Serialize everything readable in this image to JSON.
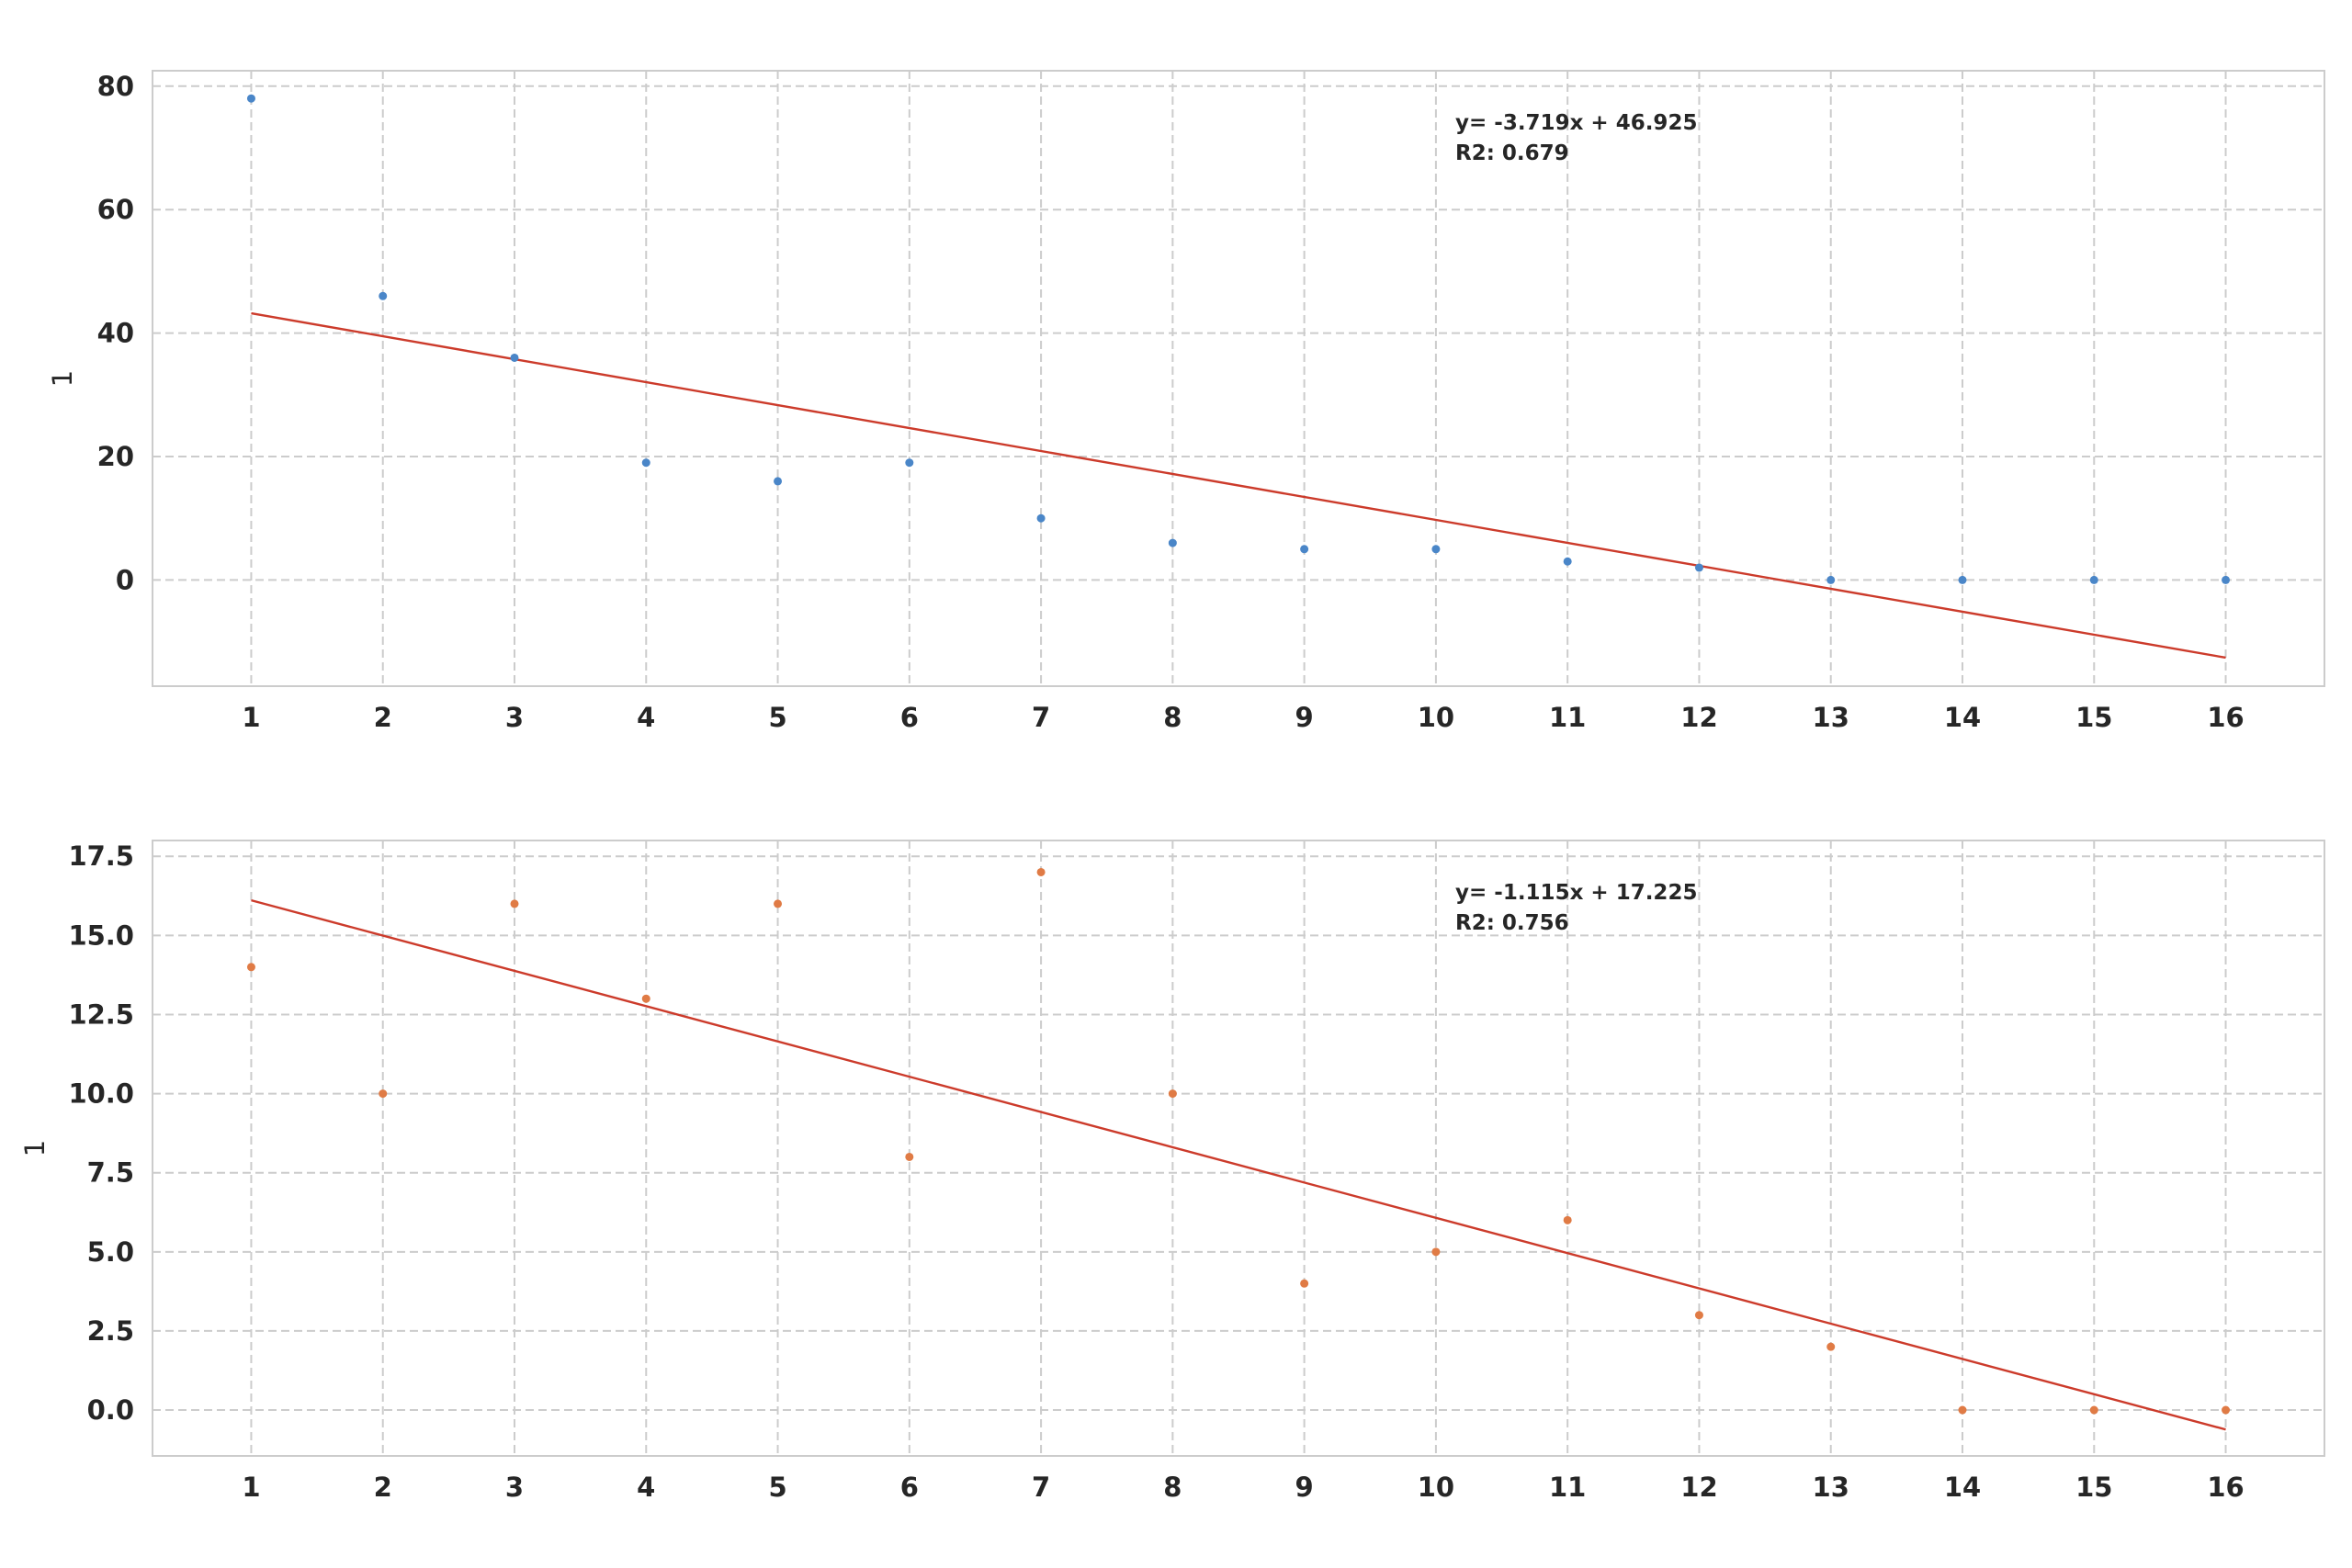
{
  "chart_data": [
    {
      "type": "scatter",
      "title": "",
      "xlabel": "",
      "ylabel": "1",
      "xlim": [
        0.25,
        16.75
      ],
      "ylim": [
        -17.2,
        82.5
      ],
      "xticks": [
        1,
        2,
        3,
        4,
        5,
        6,
        7,
        8,
        9,
        10,
        11,
        12,
        13,
        14,
        15,
        16
      ],
      "yticks": [
        0,
        20,
        40,
        60,
        80
      ],
      "grid": true,
      "series": [
        {
          "color": "#4a86c8",
          "x": [
            1,
            2,
            3,
            4,
            5,
            6,
            7,
            8,
            9,
            10,
            11,
            12,
            13,
            14,
            15,
            16
          ],
          "y": [
            78,
            46,
            36,
            19,
            16,
            19,
            10,
            6,
            5,
            5,
            3,
            2,
            0,
            0,
            0,
            0
          ]
        }
      ],
      "fit_line": {
        "color": "#cc3b2b",
        "slope": -3.719,
        "intercept": 46.925
      },
      "annotation": [
        "y= -3.719x + 46.925",
        "R2: 0.679"
      ]
    },
    {
      "type": "scatter",
      "title": "",
      "xlabel": "",
      "ylabel": "1",
      "xlim": [
        0.25,
        16.75
      ],
      "ylim": [
        -1.45,
        18.0
      ],
      "xticks": [
        1,
        2,
        3,
        4,
        5,
        6,
        7,
        8,
        9,
        10,
        11,
        12,
        13,
        14,
        15,
        16
      ],
      "yticks": [
        0.0,
        2.5,
        5.0,
        7.5,
        10.0,
        12.5,
        15.0,
        17.5
      ],
      "ytick_labels": [
        "0.0",
        "2.5",
        "5.0",
        "7.5",
        "10.0",
        "12.5",
        "15.0",
        "17.5"
      ],
      "grid": true,
      "series": [
        {
          "color": "#e07b45",
          "x": [
            1,
            2,
            3,
            4,
            5,
            6,
            7,
            8,
            9,
            10,
            11,
            12,
            13,
            14,
            15,
            16
          ],
          "y": [
            14,
            10,
            16,
            13,
            16,
            8,
            17,
            10,
            4,
            5,
            6,
            3,
            2,
            0,
            0,
            0
          ]
        }
      ],
      "fit_line": {
        "color": "#cc3b2b",
        "slope": -1.115,
        "intercept": 17.225
      },
      "annotation": [
        "y= -1.115x + 17.225",
        "R2: 0.756"
      ]
    }
  ]
}
